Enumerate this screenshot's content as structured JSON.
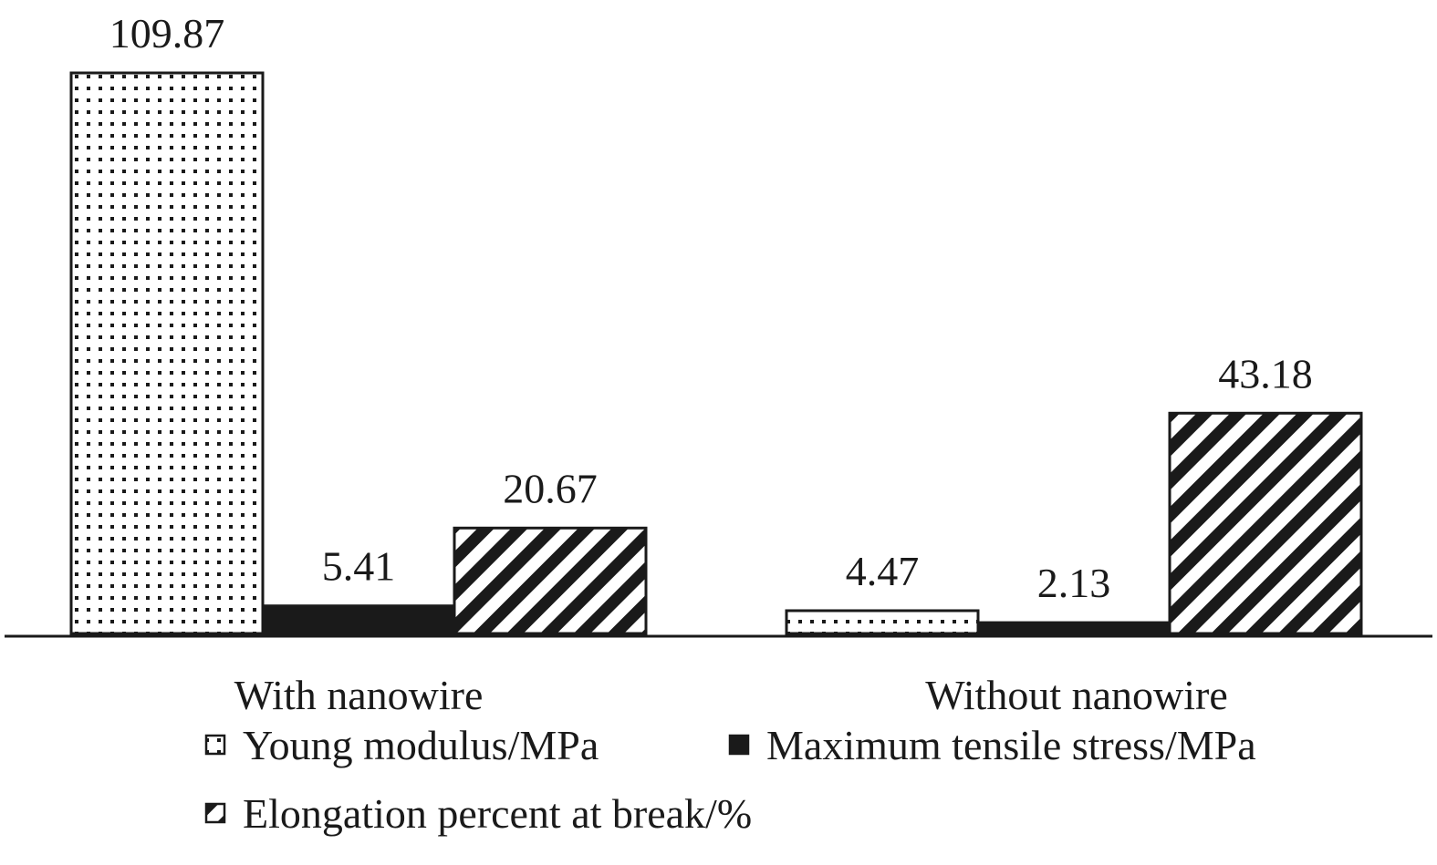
{
  "chart_data": {
    "type": "bar",
    "title": "",
    "xlabel": "",
    "ylabel": "",
    "categories": [
      "With nanowire",
      "Without nanowire"
    ],
    "series": [
      {
        "name": "Young modulus/MPa",
        "values": [
          109.87,
          4.47
        ],
        "value_labels": [
          "109.87",
          "4.47"
        ],
        "pattern": "dots"
      },
      {
        "name": "Maximum tensile stress/MPa",
        "values": [
          5.41,
          2.13
        ],
        "value_labels": [
          "5.41",
          "2.13"
        ],
        "pattern": "solid"
      },
      {
        "name": "Elongation percent at break/%",
        "values": [
          20.67,
          43.18
        ],
        "value_labels": [
          "20.67",
          "43.18"
        ],
        "pattern": "diagonal-stripes"
      }
    ],
    "ylim": [
      0,
      109.87
    ],
    "grid": false,
    "legend_position": "bottom",
    "colors": {
      "ink": "#1a1a1a",
      "background": "#ffffff"
    }
  }
}
